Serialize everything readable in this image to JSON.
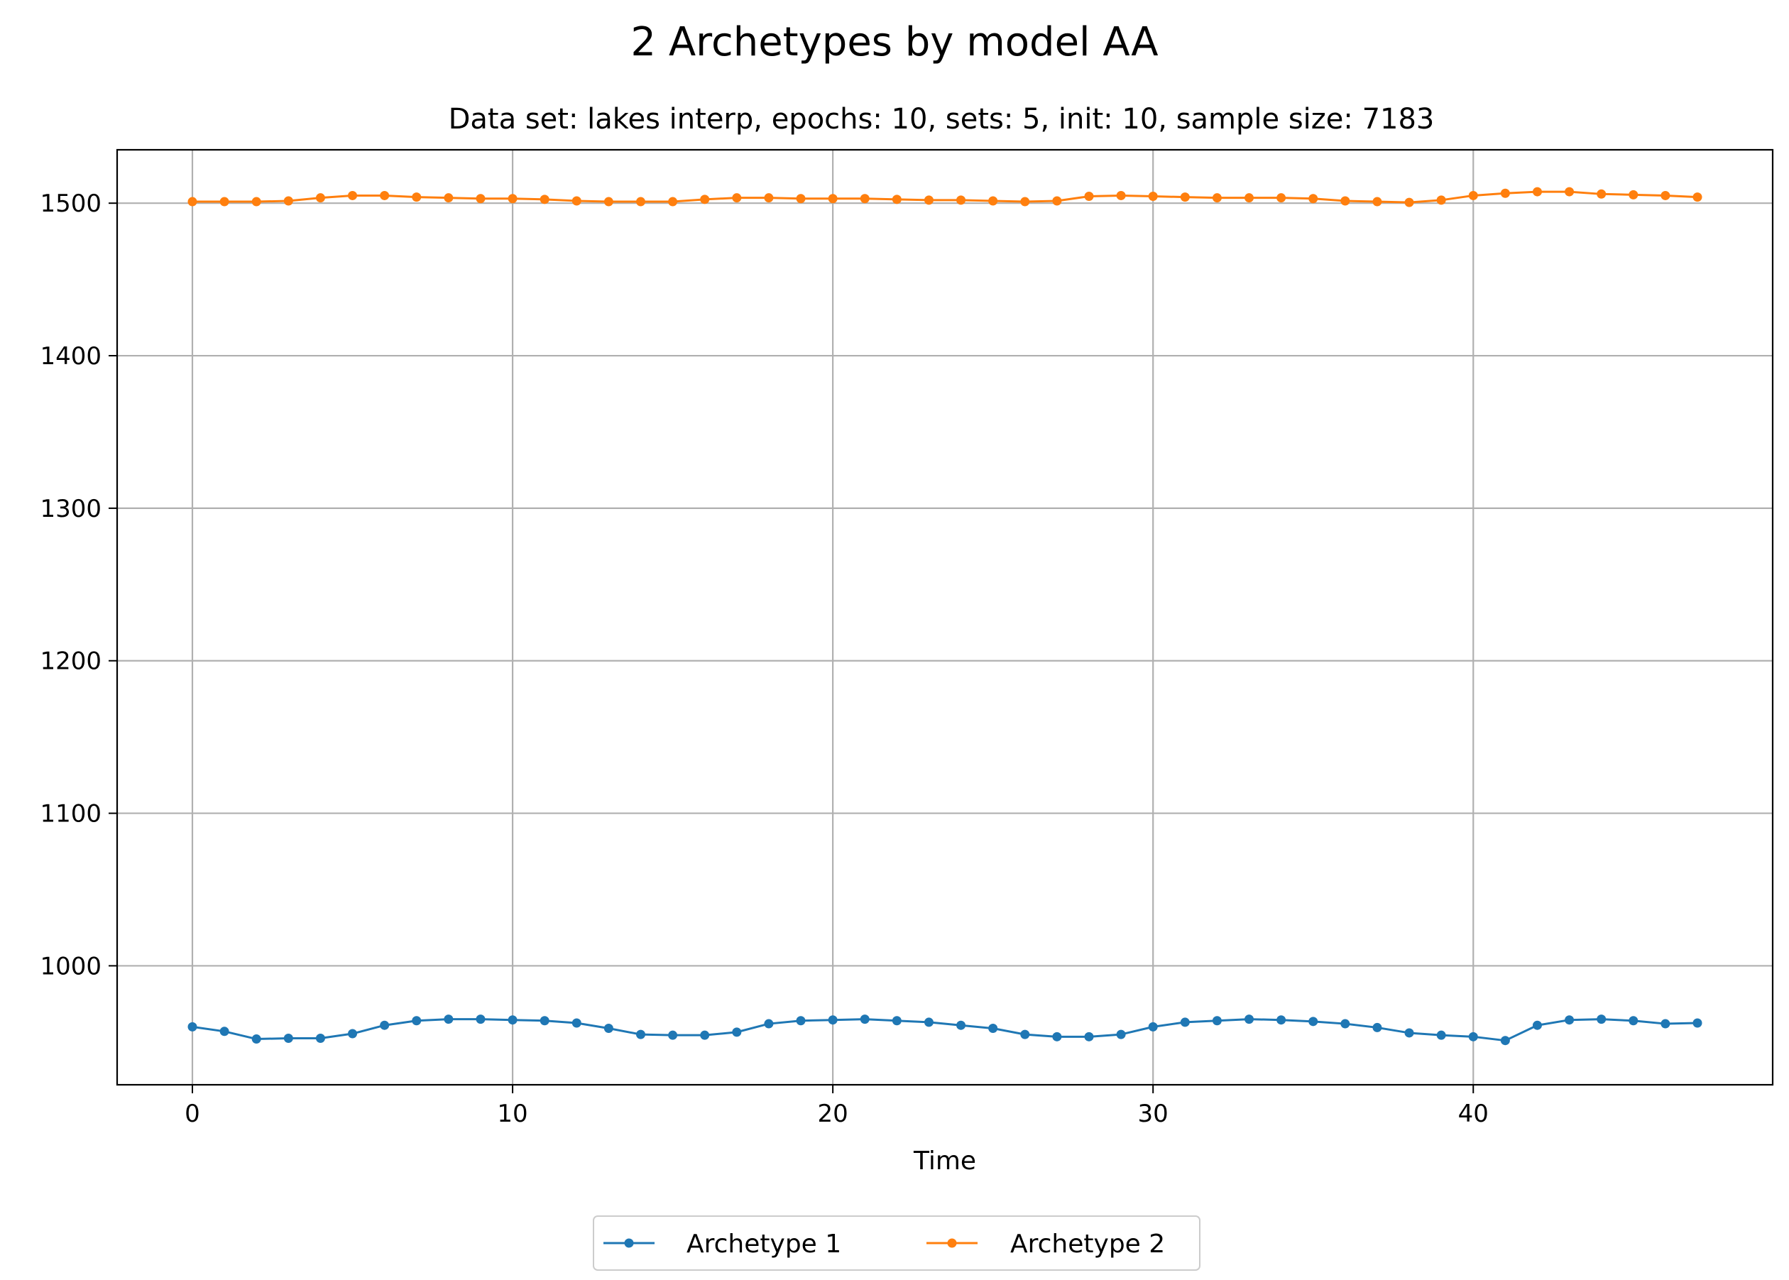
{
  "chart_data": {
    "type": "line",
    "title": "2 Archetypes by model AA",
    "subtitle": "Data set: lakes interp, epochs: 10, sets: 5, init: 10, sample size: 7183",
    "xlabel": "Time",
    "ylabel": "",
    "xlim": [
      -2.35,
      49.35
    ],
    "ylim": [
      922,
      1535
    ],
    "xticks": [
      0,
      10,
      20,
      30,
      40
    ],
    "yticks": [
      1000,
      1100,
      1200,
      1300,
      1400,
      1500
    ],
    "grid": true,
    "legend_position": "bottom-center",
    "x": [
      0,
      1,
      2,
      3,
      4,
      5,
      6,
      7,
      8,
      9,
      10,
      11,
      12,
      13,
      14,
      15,
      16,
      17,
      18,
      19,
      20,
      21,
      22,
      23,
      24,
      25,
      26,
      27,
      28,
      29,
      30,
      31,
      32,
      33,
      34,
      35,
      36,
      37,
      38,
      39,
      40,
      41,
      42,
      43,
      44,
      45,
      46,
      47
    ],
    "series": [
      {
        "name": "Archetype 1",
        "color": "#1f77b4",
        "values": [
          960,
          957,
          952,
          952.5,
          952.5,
          955.5,
          961,
          964,
          965,
          965,
          964.5,
          964,
          962.5,
          959,
          955,
          954.5,
          954.5,
          956.5,
          962,
          964,
          964.5,
          965,
          964,
          963,
          961,
          959,
          955,
          953.5,
          953.5,
          955,
          960,
          963,
          964,
          965,
          964.5,
          963.5,
          962,
          959.5,
          956,
          954.5,
          953.5,
          951,
          961,
          964.5,
          965,
          964,
          962,
          962.5
        ]
      },
      {
        "name": "Archetype 2",
        "color": "#ff7f0e",
        "values": [
          1501,
          1501,
          1501,
          1501.5,
          1503.5,
          1505,
          1505,
          1504,
          1503.5,
          1503,
          1503,
          1502.5,
          1501.5,
          1501,
          1501,
          1501,
          1502.5,
          1503.5,
          1503.5,
          1503,
          1503,
          1503,
          1502.5,
          1502,
          1502,
          1501.5,
          1501,
          1501.5,
          1504.5,
          1505,
          1504.5,
          1504,
          1503.5,
          1503.5,
          1503.5,
          1503,
          1501.5,
          1501,
          1500.5,
          1502,
          1505,
          1506.5,
          1507.5,
          1507.5,
          1506,
          1505.5,
          1505,
          1504
        ]
      }
    ]
  }
}
